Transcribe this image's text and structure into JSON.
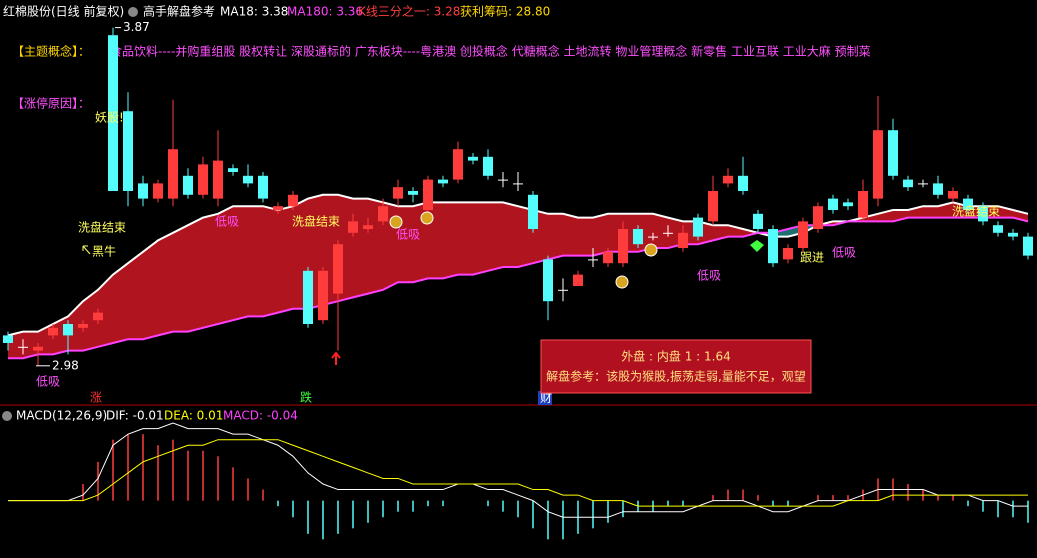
{
  "header": {
    "stock": "红棉股份(日线 前复权)",
    "indicator": "高手解盘参考",
    "legend": [
      "MA18: 3.38",
      "MA180: 3.36",
      "K线三分之一: 3.28",
      "获利筹码: 28.80"
    ]
  },
  "concept_label": "【主题概念】：",
  "concept_text": "食品饮料----并购重组股 股权转让 深股通标的 广东板块----粤港澳 创投概念 代糖概念 土地流转 物业管理概念 新零售 工业互联 工业大麻 预制菜",
  "limit_up_label": "【涨停原因】：",
  "info_box": {
    "ratio": "外盘 : 内盘  1 : 1.64",
    "comment": "解盘参考：该股为猴股,振荡走弱,量能不足，观望"
  },
  "chart_data": [
    {
      "type": "candlestick",
      "up_color": "#ff3c3c",
      "down_color": "#54fcfc",
      "flat_color": "#ffffff",
      "band_up_color": "#b0141e",
      "band_down_color": "#1e7070",
      "open": [
        3.06,
        3.03,
        3.02,
        3.06,
        3.09,
        3.08,
        3.1,
        3.85,
        3.65,
        3.46,
        3.42,
        3.42,
        3.48,
        3.43,
        3.42,
        3.5,
        3.48,
        3.48,
        3.39,
        3.4,
        3.23,
        3.1,
        3.17,
        3.33,
        3.34,
        3.36,
        3.42,
        3.44,
        3.39,
        3.47,
        3.47,
        3.53,
        3.53,
        3.47,
        3.46,
        3.43,
        3.26,
        3.18,
        3.19,
        3.26,
        3.25,
        3.25,
        3.34,
        3.32,
        3.33,
        3.29,
        3.37,
        3.36,
        3.46,
        3.48,
        3.38,
        3.34,
        3.26,
        3.29,
        3.34,
        3.42,
        3.41,
        3.37,
        3.42,
        3.6,
        3.47,
        3.46,
        3.46,
        3.42,
        3.42,
        3.4,
        3.35,
        3.33,
        3.32
      ],
      "high": [
        3.07,
        3.05,
        3.04,
        3.09,
        3.1,
        3.1,
        3.13,
        3.87,
        3.7,
        3.48,
        3.47,
        3.68,
        3.5,
        3.53,
        3.6,
        3.51,
        3.51,
        3.49,
        3.41,
        3.44,
        3.24,
        3.24,
        3.31,
        3.38,
        3.37,
        3.42,
        3.47,
        3.45,
        3.48,
        3.48,
        3.57,
        3.54,
        3.55,
        3.49,
        3.49,
        3.44,
        3.27,
        3.21,
        3.23,
        3.29,
        3.29,
        3.36,
        3.35,
        3.33,
        3.35,
        3.35,
        3.38,
        3.48,
        3.5,
        3.53,
        3.39,
        3.35,
        3.3,
        3.37,
        3.41,
        3.43,
        3.42,
        3.47,
        3.69,
        3.63,
        3.48,
        3.47,
        3.48,
        3.45,
        3.43,
        3.41,
        3.36,
        3.34,
        3.33
      ],
      "low": [
        3.02,
        3.01,
        2.98,
        3.05,
        3.01,
        3.07,
        3.09,
        3.44,
        3.4,
        3.4,
        3.41,
        3.4,
        3.42,
        3.42,
        3.4,
        3.48,
        3.45,
        3.41,
        3.38,
        3.39,
        3.08,
        3.09,
        3.02,
        3.32,
        3.33,
        3.35,
        3.4,
        3.41,
        3.38,
        3.45,
        3.46,
        3.51,
        3.47,
        3.45,
        3.44,
        3.33,
        3.1,
        3.15,
        3.19,
        3.24,
        3.24,
        3.24,
        3.29,
        3.31,
        3.32,
        3.28,
        3.31,
        3.35,
        3.45,
        3.43,
        3.33,
        3.24,
        3.25,
        3.28,
        3.33,
        3.38,
        3.39,
        3.36,
        3.4,
        3.47,
        3.44,
        3.45,
        3.42,
        3.41,
        3.38,
        3.35,
        3.32,
        3.31,
        3.26
      ],
      "close": [
        3.04,
        3.03,
        3.03,
        3.08,
        3.06,
        3.09,
        3.12,
        3.44,
        3.44,
        3.42,
        3.46,
        3.55,
        3.43,
        3.51,
        3.52,
        3.49,
        3.46,
        3.42,
        3.4,
        3.43,
        3.09,
        3.23,
        3.3,
        3.36,
        3.35,
        3.4,
        3.45,
        3.43,
        3.47,
        3.46,
        3.55,
        3.52,
        3.48,
        3.47,
        3.46,
        3.34,
        3.15,
        3.18,
        3.22,
        3.26,
        3.28,
        3.34,
        3.3,
        3.32,
        3.33,
        3.33,
        3.32,
        3.44,
        3.48,
        3.44,
        3.34,
        3.25,
        3.29,
        3.36,
        3.4,
        3.39,
        3.4,
        3.44,
        3.6,
        3.48,
        3.45,
        3.46,
        3.43,
        3.44,
        3.39,
        3.36,
        3.33,
        3.32,
        3.27
      ],
      "series": [
        {
          "color": "#ffffff",
          "values": [
            3.06,
            3.07,
            3.07,
            3.09,
            3.11,
            3.15,
            3.18,
            3.22,
            3.25,
            3.28,
            3.31,
            3.33,
            3.35,
            3.37,
            3.38,
            3.4,
            3.4,
            3.4,
            3.39,
            3.4,
            3.42,
            3.43,
            3.43,
            3.42,
            3.42,
            3.41,
            3.4,
            3.4,
            3.41,
            3.41,
            3.41,
            3.41,
            3.41,
            3.41,
            3.4,
            3.39,
            3.38,
            3.38,
            3.37,
            3.37,
            3.38,
            3.38,
            3.38,
            3.38,
            3.37,
            3.36,
            3.36,
            3.35,
            3.35,
            3.34,
            3.33,
            3.32,
            3.32,
            3.33,
            3.35,
            3.36,
            3.36,
            3.37,
            3.38,
            3.39,
            3.39,
            3.4,
            3.4,
            3.41,
            3.4,
            3.4,
            3.4,
            3.39,
            3.38
          ]
        },
        {
          "color": "#ff40ff",
          "values": [
            3.0,
            3.0,
            3.01,
            3.01,
            3.02,
            3.02,
            3.03,
            3.04,
            3.05,
            3.05,
            3.06,
            3.07,
            3.07,
            3.08,
            3.09,
            3.1,
            3.11,
            3.11,
            3.12,
            3.13,
            3.13,
            3.14,
            3.15,
            3.16,
            3.17,
            3.18,
            3.2,
            3.2,
            3.21,
            3.21,
            3.22,
            3.22,
            3.23,
            3.24,
            3.24,
            3.25,
            3.26,
            3.27,
            3.27,
            3.27,
            3.28,
            3.28,
            3.28,
            3.29,
            3.29,
            3.3,
            3.3,
            3.31,
            3.32,
            3.32,
            3.33,
            3.33,
            3.34,
            3.35,
            3.35,
            3.35,
            3.36,
            3.36,
            3.36,
            3.36,
            3.37,
            3.37,
            3.37,
            3.37,
            3.37,
            3.37,
            3.37,
            3.37,
            3.36
          ]
        }
      ],
      "ylim": [
        2.89,
        3.89
      ],
      "max_label": 3.87,
      "min_label": 2.98,
      "annotations": [
        "妖股!",
        "洗盘结束",
        "黑牛",
        "低吸",
        "洗盘结束",
        "低吸",
        "低吸",
        "跟进",
        "低吸",
        "洗盘结束",
        "低吸"
      ],
      "event_markers": [
        "涨",
        "跌",
        "财"
      ]
    },
    {
      "type": "macd",
      "title": "MACD(12,26,9)",
      "legend": [
        "DIF: -0.01",
        "DEA: 0.01",
        "MACD: -0.04"
      ],
      "up_color": "#ff3c3c",
      "down_color": "#54fcfc",
      "histogram": [
        0,
        0,
        0,
        0,
        0,
        0.03,
        0.07,
        0.11,
        0.12,
        0.12,
        0.1,
        0.11,
        0.09,
        0.09,
        0.08,
        0.06,
        0.04,
        0.02,
        -0.01,
        -0.03,
        -0.06,
        -0.07,
        -0.06,
        -0.05,
        -0.04,
        -0.03,
        -0.02,
        -0.02,
        -0.01,
        -0.01,
        0,
        0,
        -0.01,
        -0.02,
        -0.03,
        -0.05,
        -0.07,
        -0.07,
        -0.06,
        -0.05,
        -0.04,
        -0.03,
        -0.02,
        -0.02,
        -0.01,
        -0.01,
        0,
        0.01,
        0.02,
        0.02,
        0.01,
        -0.01,
        -0.01,
        0,
        0.01,
        0.01,
        0.01,
        0.02,
        0.04,
        0.04,
        0.03,
        0.02,
        0.01,
        0.01,
        -0.01,
        -0.02,
        -0.03,
        -0.03,
        -0.04
      ],
      "series": [
        {
          "color": "#ffffff",
          "values": [
            0,
            0,
            0,
            0,
            0,
            0.01,
            0.04,
            0.1,
            0.12,
            0.13,
            0.13,
            0.14,
            0.13,
            0.13,
            0.13,
            0.12,
            0.12,
            0.11,
            0.1,
            0.08,
            0.05,
            0.03,
            0.02,
            0.02,
            0.02,
            0.02,
            0.02,
            0.02,
            0.02,
            0.02,
            0.03,
            0.03,
            0.02,
            0.02,
            0.01,
            0,
            -0.02,
            -0.03,
            -0.03,
            -0.03,
            -0.03,
            -0.02,
            -0.02,
            -0.02,
            -0.02,
            -0.02,
            -0.01,
            0,
            0,
            0,
            -0.01,
            -0.02,
            -0.02,
            -0.01,
            0,
            0,
            0,
            0.01,
            0.02,
            0.02,
            0.02,
            0.02,
            0.01,
            0.01,
            0.01,
            0,
            0,
            -0.01,
            -0.01
          ]
        },
        {
          "color": "#ffff00",
          "values": [
            0,
            0,
            0,
            0,
            0,
            0,
            0.01,
            0.03,
            0.05,
            0.07,
            0.08,
            0.09,
            0.1,
            0.1,
            0.11,
            0.11,
            0.11,
            0.11,
            0.11,
            0.1,
            0.09,
            0.08,
            0.07,
            0.06,
            0.05,
            0.04,
            0.04,
            0.03,
            0.03,
            0.03,
            0.03,
            0.03,
            0.03,
            0.03,
            0.03,
            0.02,
            0.02,
            0.01,
            0.01,
            0,
            0,
            0,
            -0.01,
            -0.01,
            -0.01,
            -0.01,
            -0.01,
            -0.01,
            -0.01,
            -0.01,
            -0.01,
            -0.01,
            -0.01,
            -0.01,
            -0.01,
            -0.01,
            0,
            0,
            0,
            0.01,
            0.01,
            0.01,
            0.01,
            0.01,
            0.01,
            0.01,
            0.01,
            0.01,
            0.01
          ]
        }
      ],
      "ylim": [
        -0.1,
        0.16
      ]
    }
  ]
}
